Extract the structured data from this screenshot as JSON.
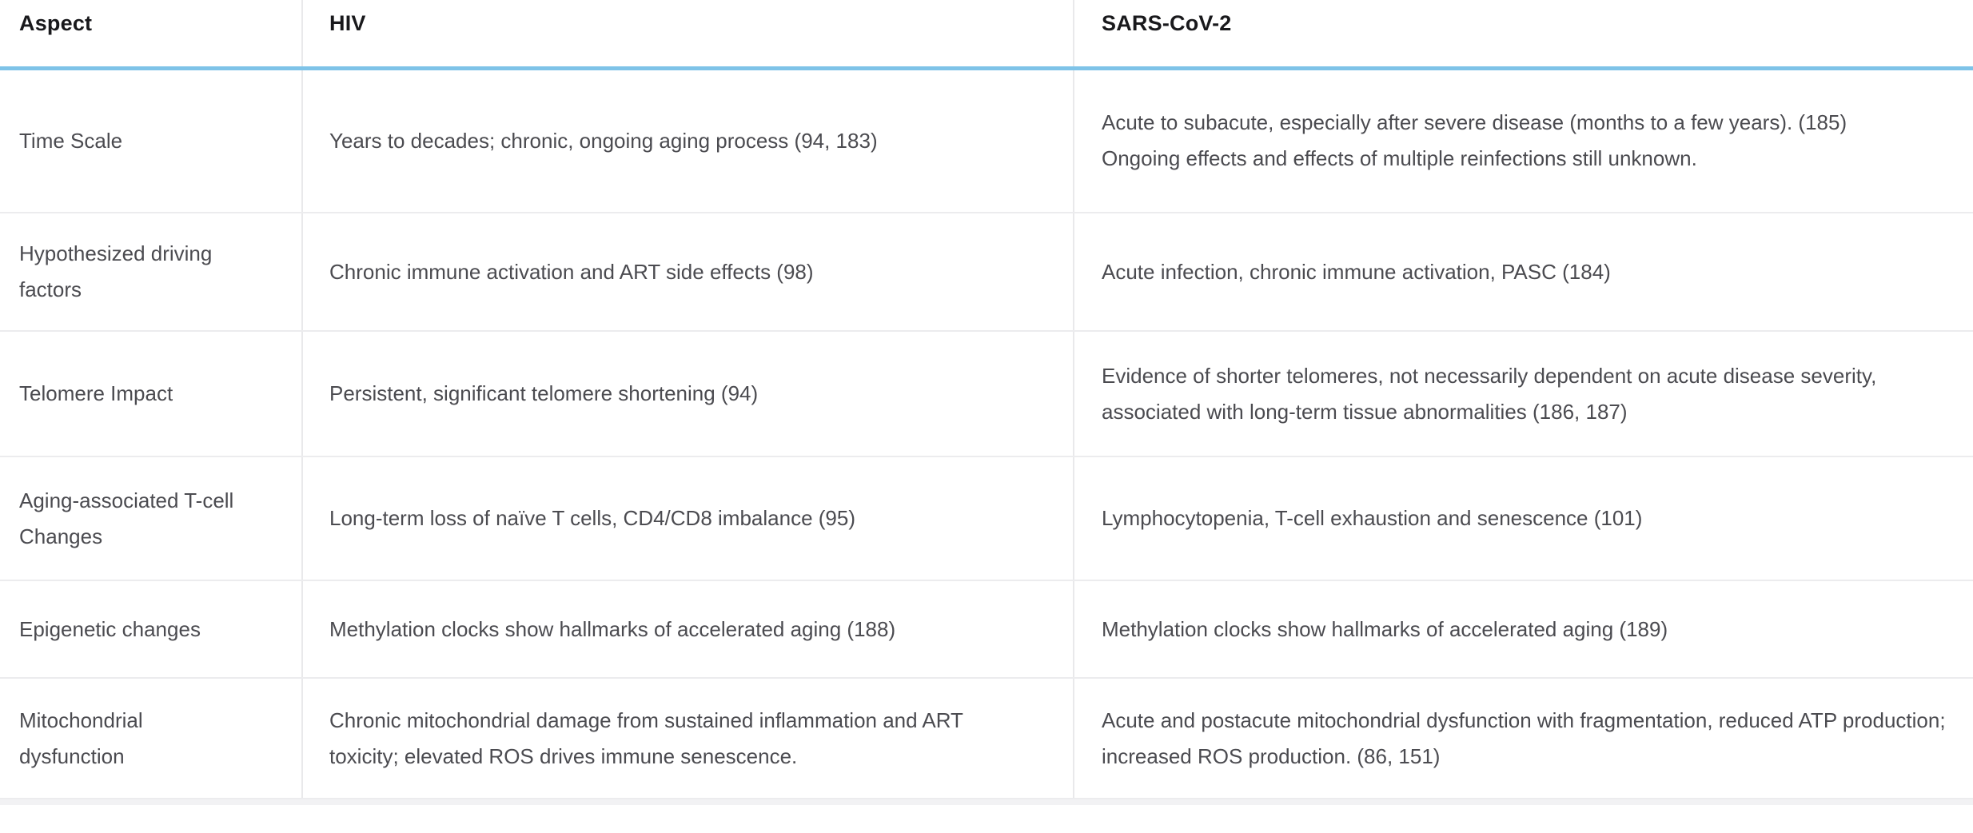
{
  "colors": {
    "accent_blue": "#7ec3e8",
    "row_divider": "#ececee",
    "column_divider": "#e9e9eb",
    "header_text": "#19191c",
    "body_text": "#4b4b50",
    "bottom_strip": "#f2f2f4",
    "background": "#ffffff"
  },
  "table": {
    "columns": [
      {
        "key": "aspect",
        "label": "Aspect"
      },
      {
        "key": "hiv",
        "label": "HIV"
      },
      {
        "key": "sars",
        "label": "SARS-CoV-2"
      }
    ],
    "rows": [
      {
        "aspect": "Time Scale",
        "hiv": "Years to decades; chronic, ongoing aging process (94, 183)",
        "sars": "Acute to subacute, especially after severe disease (months to a few years). (185)\nOngoing effects and effects of multiple reinfections still unknown."
      },
      {
        "aspect": "Hypothesized driving\nfactors",
        "hiv": "Chronic immune activation and ART side effects (98)",
        "sars": "Acute infection, chronic immune activation, PASC (184)"
      },
      {
        "aspect": "Telomere Impact",
        "hiv": "Persistent, significant telomere shortening (94)",
        "sars": "Evidence of shorter telomeres, not necessarily dependent on acute disease severity, associated with long-term tissue abnormalities (186, 187)"
      },
      {
        "aspect": "Aging-associated T-cell\nChanges",
        "hiv": "Long-term loss of naïve T cells, CD4/CD8 imbalance (95)",
        "sars": "Lymphocytopenia, T-cell exhaustion and senescence (101)"
      },
      {
        "aspect": "Epigenetic changes",
        "hiv": "Methylation clocks show hallmarks of accelerated aging (188)",
        "sars": "Methylation clocks show hallmarks of accelerated aging (189)"
      },
      {
        "aspect": "Mitochondrial\ndysfunction",
        "hiv": "Chronic mitochondrial damage from sustained inflammation and ART toxicity; elevated ROS drives immune senescence.",
        "sars": "Acute and postacute mitochondrial dysfunction with fragmentation, reduced ATP production; increased ROS production. (86, 151)"
      }
    ]
  }
}
